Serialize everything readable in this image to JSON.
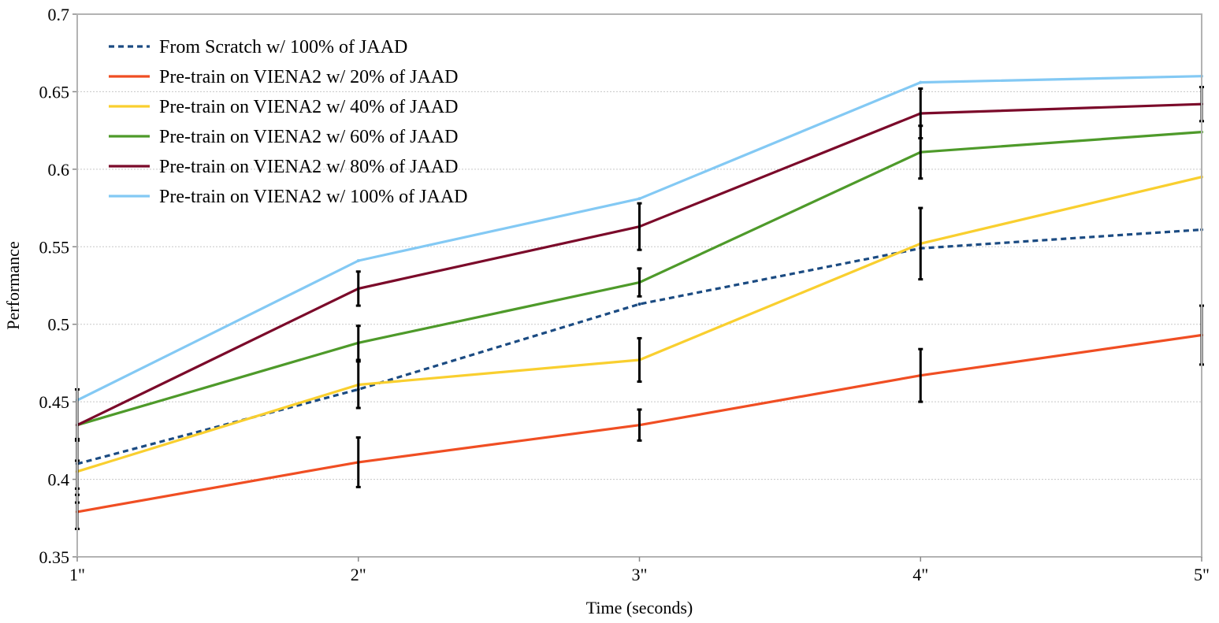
{
  "chart_data": {
    "type": "line",
    "title": "",
    "xlabel": "Time (seconds)",
    "ylabel": "Performance",
    "categories": [
      "1\"",
      "2\"",
      "3\"",
      "4\"",
      "5\""
    ],
    "ylim": [
      0.35,
      0.7
    ],
    "yticks": [
      "0.35",
      "0.4",
      "0.45",
      "0.5",
      "0.55",
      "0.6",
      "0.65",
      "0.7"
    ],
    "grid": "horizontal",
    "legend_position": "top-left",
    "series": [
      {
        "name": "From Scratch w/ 100% of JAAD",
        "color": "#1b4b82",
        "dashed": true,
        "values": [
          0.41,
          0.458,
          0.513,
          0.549,
          0.561
        ],
        "error": [
          0.016,
          0.0,
          0.0,
          0.0,
          0.0
        ]
      },
      {
        "name": "Pre-train on VIENA2 w/ 20% of JAAD",
        "color": "#f04e23",
        "dashed": false,
        "values": [
          0.379,
          0.411,
          0.435,
          0.467,
          0.493
        ],
        "error": [
          0.011,
          0.016,
          0.01,
          0.017,
          0.019
        ]
      },
      {
        "name": "Pre-train on VIENA2 w/ 40% of JAAD",
        "color": "#f9cf2f",
        "dashed": false,
        "values": [
          0.405,
          0.461,
          0.477,
          0.552,
          0.595
        ],
        "error": [
          0.02,
          0.015,
          0.014,
          0.023,
          0.0
        ]
      },
      {
        "name": "Pre-train on VIENA2 w/ 60% of JAAD",
        "color": "#4e9a2a",
        "dashed": false,
        "values": [
          0.435,
          0.488,
          0.527,
          0.611,
          0.624
        ],
        "error": [
          0.023,
          0.011,
          0.009,
          0.017,
          0.0
        ]
      },
      {
        "name": "Pre-train on VIENA2 w/ 80% of JAAD",
        "color": "#7b0a2a",
        "dashed": false,
        "values": [
          0.435,
          0.523,
          0.563,
          0.636,
          0.642
        ],
        "error": [
          0.0,
          0.011,
          0.015,
          0.016,
          0.011
        ]
      },
      {
        "name": "Pre-train on VIENA2 w/ 100% of JAAD",
        "color": "#83c9f4",
        "dashed": false,
        "values": [
          0.451,
          0.541,
          0.581,
          0.656,
          0.66
        ],
        "error": [
          0.0,
          0.0,
          0.0,
          0.0,
          0.0
        ]
      }
    ]
  }
}
